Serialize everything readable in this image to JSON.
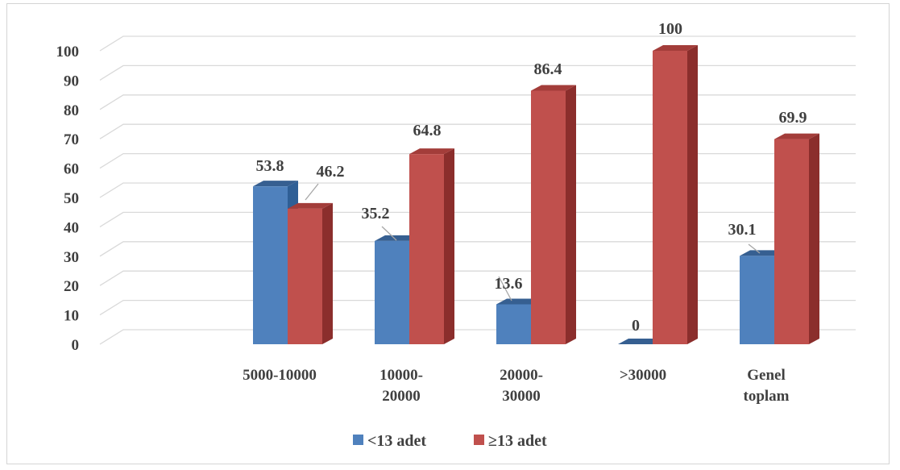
{
  "chart_data": {
    "type": "bar",
    "title": "",
    "xlabel": "",
    "ylabel": "",
    "ylim": [
      0,
      100
    ],
    "yticks": [
      "0",
      "10",
      "20",
      "30",
      "40",
      "50",
      "60",
      "70",
      "80",
      "90",
      "100"
    ],
    "categories": [
      [
        "5000-10000"
      ],
      [
        "10000-",
        "20000"
      ],
      [
        "20000-",
        "30000"
      ],
      [
        ">30000"
      ],
      [
        "Genel",
        "toplam"
      ]
    ],
    "series": [
      {
        "name": "<13 adet",
        "color": "#4f81bd",
        "side": "#2f5f96",
        "top": "#365f91",
        "values": [
          53.8,
          35.2,
          13.6,
          0,
          30.1
        ],
        "labels": [
          "53.8",
          "35.2",
          "13.6",
          "0",
          "30.1"
        ]
      },
      {
        "name": "≥13 adet",
        "color": "#c0504d",
        "side": "#8b2e2c",
        "top": "#a33d3a",
        "values": [
          46.2,
          64.8,
          86.4,
          100,
          69.9
        ],
        "labels": [
          "46.2",
          "64.8",
          "86.4",
          "100",
          "69.9"
        ]
      }
    ],
    "grid": true,
    "legend_position": "bottom",
    "style": "3d-clustered-column"
  }
}
